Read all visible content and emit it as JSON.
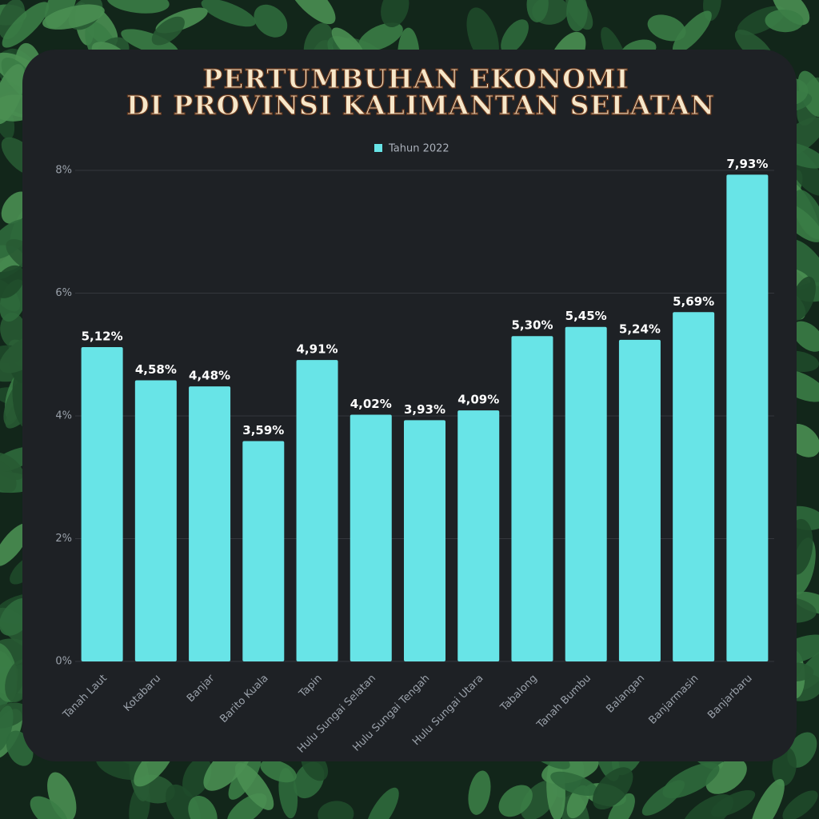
{
  "chart_data": {
    "type": "bar",
    "title": [
      "PERTUMBUHAN EKONOMI",
      "DI PROVINSI KALIMANTAN SELATAN"
    ],
    "categories": [
      "Tanah Laut",
      "Kotabaru",
      "Banjar",
      "Barito Kuala",
      "Tapin",
      "Hulu Sungai Selatan",
      "Hulu Sungai Tengah",
      "Hulu Sungai Utara",
      "Tabalong",
      "Tanah Bumbu",
      "Balangan",
      "Banjarmasin",
      "Banjarbaru"
    ],
    "series": [
      {
        "name": "Tahun 2022",
        "color": "#68e4e7",
        "values": [
          5.12,
          4.58,
          4.48,
          3.59,
          4.91,
          4.02,
          3.93,
          4.09,
          5.3,
          5.45,
          5.24,
          5.69,
          7.93
        ],
        "value_labels": [
          "5,12%",
          "4,58%",
          "4,48%",
          "3,59%",
          "4,91%",
          "4,02%",
          "3,93%",
          "4,09%",
          "5,30%",
          "5,45%",
          "5,24%",
          "5,69%",
          "7,93%"
        ]
      }
    ],
    "ylim": [
      0,
      8
    ],
    "yticks": [
      {
        "value": 0,
        "label": "0%"
      },
      {
        "value": 2,
        "label": "2%"
      },
      {
        "value": 4,
        "label": "4%"
      },
      {
        "value": 6,
        "label": "6%"
      },
      {
        "value": 8,
        "label": "8%"
      }
    ],
    "grid": true,
    "legend": "top"
  }
}
